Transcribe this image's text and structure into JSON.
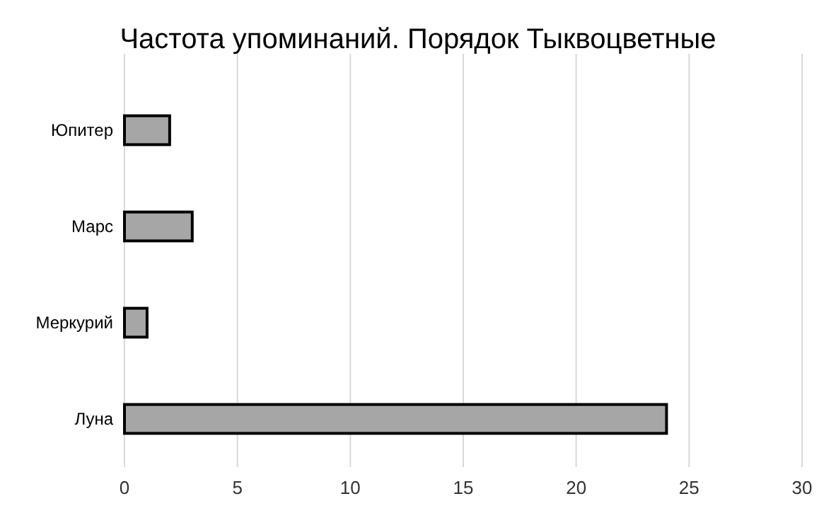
{
  "chart_data": {
    "type": "bar",
    "orientation": "horizontal",
    "title": "Частота упоминаний. Порядок Тыквоцветные",
    "categories": [
      "Юпитер",
      "Марс",
      "Меркурий",
      "Луна"
    ],
    "values": [
      2,
      3,
      1,
      24
    ],
    "color": "#a6a6a6",
    "xlim": [
      0,
      30
    ],
    "xticks": [
      0,
      5,
      10,
      15,
      20,
      25,
      30
    ],
    "grid": "x"
  }
}
